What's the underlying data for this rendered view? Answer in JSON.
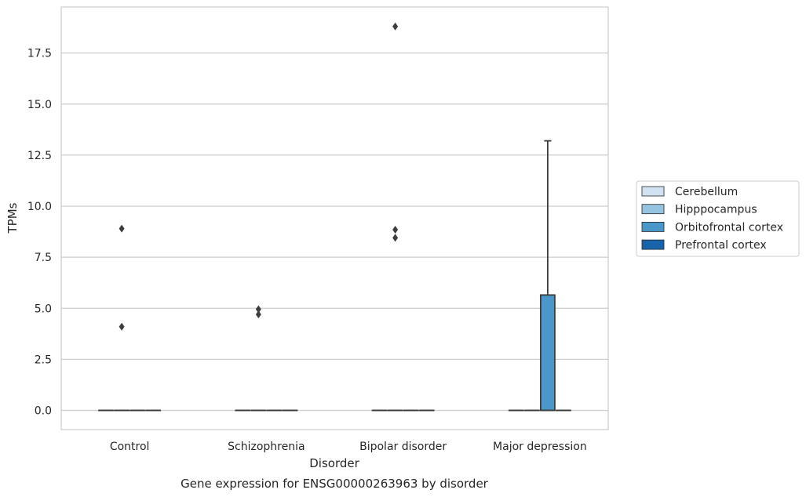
{
  "chart_data": {
    "type": "box",
    "title": "",
    "caption": "Gene expression for ENSG00000263963 by disorder",
    "xlabel": "Disorder",
    "ylabel": "TPMs",
    "ylim": [
      -0.9,
      19.7
    ],
    "yticks": [
      "0.0",
      "2.5",
      "5.0",
      "7.5",
      "10.0",
      "12.5",
      "15.0",
      "17.5"
    ],
    "grid": "horizontal",
    "legend_position": "right",
    "categories": [
      "Control",
      "Schizophrenia",
      "Bipolar disorder",
      "Major depression"
    ],
    "series": [
      {
        "name": "Cerebellum",
        "color": "#d0e1f2"
      },
      {
        "name": "Hipppocampus",
        "color": "#94c4df"
      },
      {
        "name": "Orbitofrontal cortex",
        "color": "#4a98c9"
      },
      {
        "name": "Prefrontal cortex",
        "color": "#1764ab"
      }
    ],
    "boxes": [
      {
        "category": "Control",
        "series": "Cerebellum",
        "whislo": 0,
        "q1": 0,
        "med": 0,
        "q3": 0,
        "whishi": 0,
        "fliers": []
      },
      {
        "category": "Control",
        "series": "Hipppocampus",
        "whislo": 0,
        "q1": 0,
        "med": 0,
        "q3": 0,
        "whishi": 0,
        "fliers": [
          4.1,
          8.9
        ]
      },
      {
        "category": "Control",
        "series": "Orbitofrontal cortex",
        "whislo": 0,
        "q1": 0,
        "med": 0,
        "q3": 0,
        "whishi": 0,
        "fliers": []
      },
      {
        "category": "Control",
        "series": "Prefrontal cortex",
        "whislo": 0,
        "q1": 0,
        "med": 0,
        "q3": 0,
        "whishi": 0,
        "fliers": []
      },
      {
        "category": "Schizophrenia",
        "series": "Cerebellum",
        "whislo": 0,
        "q1": 0,
        "med": 0,
        "q3": 0,
        "whishi": 0,
        "fliers": []
      },
      {
        "category": "Schizophrenia",
        "series": "Hipppocampus",
        "whislo": 0,
        "q1": 0,
        "med": 0,
        "q3": 0,
        "whishi": 0,
        "fliers": [
          4.7,
          4.95
        ]
      },
      {
        "category": "Schizophrenia",
        "series": "Orbitofrontal cortex",
        "whislo": 0,
        "q1": 0,
        "med": 0,
        "q3": 0,
        "whishi": 0,
        "fliers": []
      },
      {
        "category": "Schizophrenia",
        "series": "Prefrontal cortex",
        "whislo": 0,
        "q1": 0,
        "med": 0,
        "q3": 0,
        "whishi": 0,
        "fliers": []
      },
      {
        "category": "Bipolar disorder",
        "series": "Cerebellum",
        "whislo": 0,
        "q1": 0,
        "med": 0,
        "q3": 0,
        "whishi": 0,
        "fliers": []
      },
      {
        "category": "Bipolar disorder",
        "series": "Hipppocampus",
        "whislo": 0,
        "q1": 0,
        "med": 0,
        "q3": 0,
        "whishi": 0,
        "fliers": [
          8.45,
          8.85,
          18.8
        ]
      },
      {
        "category": "Bipolar disorder",
        "series": "Orbitofrontal cortex",
        "whislo": 0,
        "q1": 0,
        "med": 0,
        "q3": 0,
        "whishi": 0,
        "fliers": []
      },
      {
        "category": "Bipolar disorder",
        "series": "Prefrontal cortex",
        "whislo": 0,
        "q1": 0,
        "med": 0,
        "q3": 0,
        "whishi": 0,
        "fliers": []
      },
      {
        "category": "Major depression",
        "series": "Cerebellum",
        "whislo": 0,
        "q1": 0,
        "med": 0,
        "q3": 0,
        "whishi": 0,
        "fliers": []
      },
      {
        "category": "Major depression",
        "series": "Hipppocampus",
        "whislo": 0,
        "q1": 0,
        "med": 0,
        "q3": 0,
        "whishi": 0,
        "fliers": []
      },
      {
        "category": "Major depression",
        "series": "Orbitofrontal cortex",
        "whislo": 0,
        "q1": 0,
        "med": 0,
        "q3": 5.65,
        "whishi": 13.2,
        "fliers": []
      },
      {
        "category": "Major depression",
        "series": "Prefrontal cortex",
        "whislo": 0,
        "q1": 0,
        "med": 0,
        "q3": 0,
        "whishi": 0,
        "fliers": []
      }
    ]
  }
}
